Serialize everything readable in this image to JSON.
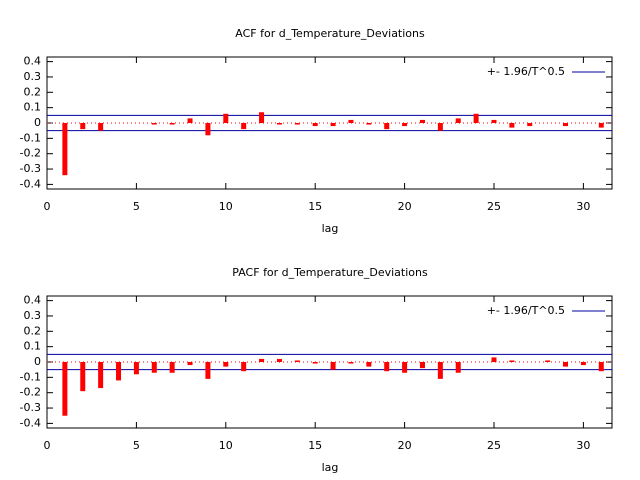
{
  "chart_data": [
    {
      "type": "bar",
      "title": "ACF for d_Temperature_Deviations",
      "xlabel": "lag",
      "x": [
        1,
        2,
        3,
        4,
        5,
        6,
        7,
        8,
        9,
        10,
        11,
        12,
        13,
        14,
        15,
        16,
        17,
        18,
        19,
        20,
        21,
        22,
        23,
        24,
        25,
        26,
        27,
        28,
        29,
        30,
        31
      ],
      "values": [
        -0.34,
        -0.04,
        -0.05,
        0,
        0,
        -0.01,
        -0.01,
        0.03,
        -0.08,
        0.06,
        -0.04,
        0.07,
        -0.01,
        -0.01,
        -0.02,
        -0.02,
        0.02,
        -0.01,
        -0.04,
        -0.02,
        0.02,
        -0.05,
        0.03,
        0.06,
        0.02,
        -0.03,
        -0.02,
        0,
        -0.02,
        0,
        -0.03
      ],
      "color": "#ff0000",
      "band": {
        "name": "+- 1.96/T^0.5",
        "color": "#0000a0",
        "value": 0.05
      },
      "xlim": [
        0,
        31.6
      ],
      "xticks": [
        0,
        5,
        10,
        15,
        20,
        25,
        30
      ],
      "ylim": [
        -0.43,
        0.43
      ],
      "yticks": [
        0.4,
        0.3,
        0.2,
        0.1,
        0,
        -0.1,
        -0.2,
        -0.3,
        -0.4
      ]
    },
    {
      "type": "bar",
      "title": "PACF for d_Temperature_Deviations",
      "xlabel": "lag",
      "x": [
        1,
        2,
        3,
        4,
        5,
        6,
        7,
        8,
        9,
        10,
        11,
        12,
        13,
        14,
        15,
        16,
        17,
        18,
        19,
        20,
        21,
        22,
        23,
        24,
        25,
        26,
        27,
        28,
        29,
        30,
        31
      ],
      "values": [
        -0.35,
        -0.19,
        -0.17,
        -0.12,
        -0.08,
        -0.07,
        -0.07,
        -0.02,
        -0.11,
        -0.03,
        -0.06,
        0.02,
        0.02,
        0.01,
        -0.01,
        -0.05,
        -0.01,
        -0.03,
        -0.06,
        -0.07,
        -0.04,
        -0.11,
        -0.07,
        0,
        0.03,
        0.01,
        0,
        0.01,
        -0.03,
        -0.02,
        -0.06
      ],
      "color": "#ff0000",
      "band": {
        "name": "+- 1.96/T^0.5",
        "color": "#0000a0",
        "value": 0.05
      },
      "xlim": [
        0,
        31.6
      ],
      "xticks": [
        0,
        5,
        10,
        15,
        20,
        25,
        30
      ],
      "ylim": [
        -0.43,
        0.43
      ],
      "yticks": [
        0.4,
        0.3,
        0.2,
        0.1,
        0,
        -0.1,
        -0.2,
        -0.3,
        -0.4
      ]
    }
  ]
}
